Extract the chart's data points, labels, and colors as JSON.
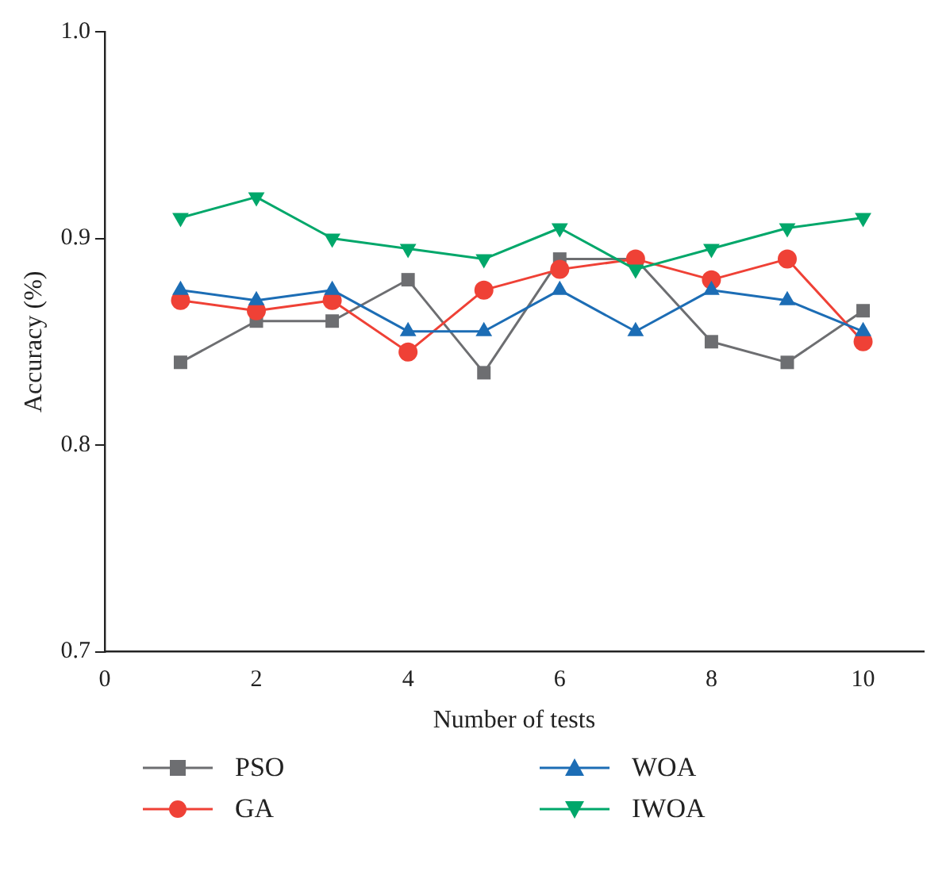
{
  "chart_data": {
    "type": "line",
    "xlabel": "Number of tests",
    "ylabel": "Accuracy (%)",
    "x": [
      1,
      2,
      3,
      4,
      5,
      6,
      7,
      8,
      9,
      10
    ],
    "series": [
      {
        "name": "PSO",
        "color": "#6d6e71",
        "marker": "square",
        "values": [
          0.84,
          0.86,
          0.86,
          0.88,
          0.835,
          0.89,
          0.89,
          0.85,
          0.84,
          0.865
        ]
      },
      {
        "name": "GA",
        "color": "#ef4136",
        "marker": "circle",
        "values": [
          0.87,
          0.865,
          0.87,
          0.845,
          0.875,
          0.885,
          0.89,
          0.88,
          0.89,
          0.85
        ]
      },
      {
        "name": "WOA",
        "color": "#1c6db5",
        "marker": "triangle",
        "values": [
          0.875,
          0.87,
          0.875,
          0.855,
          0.855,
          0.875,
          0.855,
          0.875,
          0.87,
          0.855
        ]
      },
      {
        "name": "IWOA",
        "color": "#00a76a",
        "marker": "triangle-down",
        "values": [
          0.91,
          0.92,
          0.9,
          0.895,
          0.89,
          0.905,
          0.885,
          0.895,
          0.905,
          0.91
        ]
      }
    ],
    "xlim": [
      0,
      10.8
    ],
    "xticks": [
      0,
      2,
      4,
      6,
      8,
      10
    ],
    "ylim": [
      0.7,
      1.0
    ],
    "yticks": [
      0.7,
      0.8,
      0.9,
      {
        "value": 1,
        "label": "1.0"
      }
    ],
    "grid": false,
    "legend": "bottom",
    "line_style": "solid"
  }
}
